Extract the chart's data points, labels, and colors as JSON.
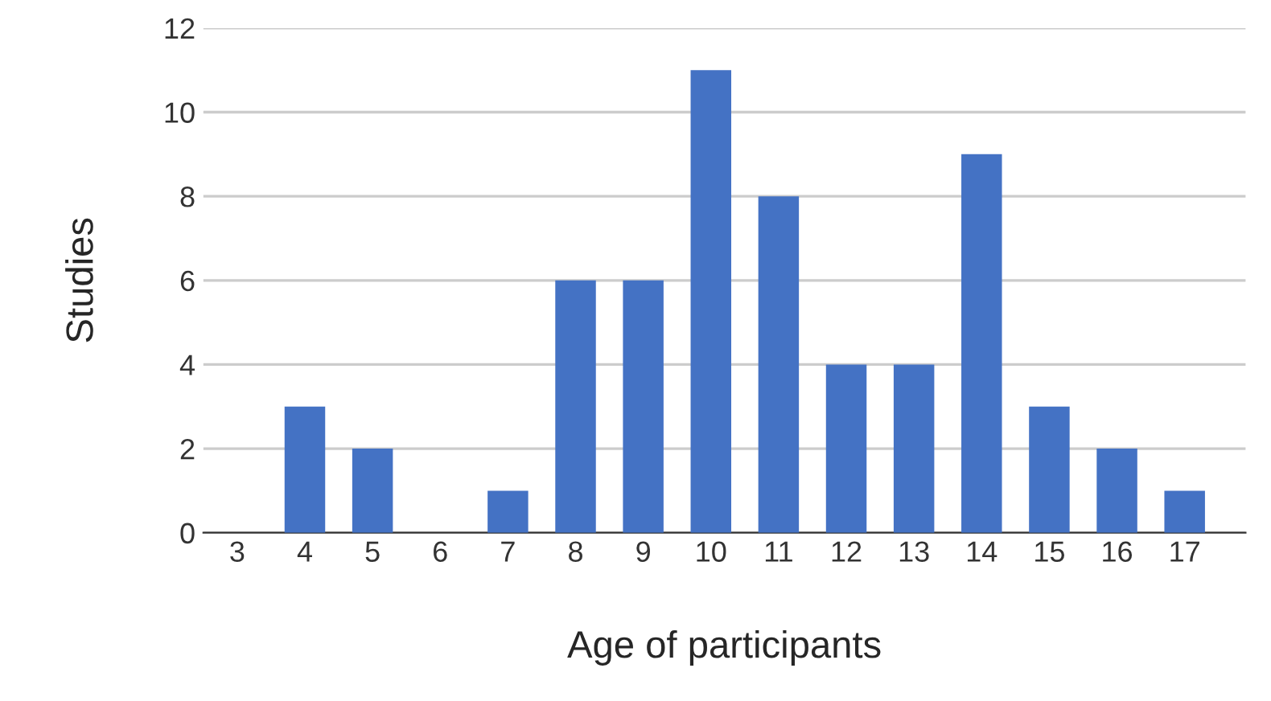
{
  "chart_data": {
    "type": "bar",
    "xlabel": "Age of participants",
    "ylabel": "Studies",
    "categories": [
      "3",
      "4",
      "5",
      "6",
      "7",
      "8",
      "9",
      "10",
      "11",
      "12",
      "13",
      "14",
      "15",
      "16",
      "17"
    ],
    "values": [
      0,
      3,
      2,
      0,
      1,
      6,
      6,
      11,
      8,
      4,
      4,
      9,
      3,
      2,
      1
    ],
    "color": "#4472c4",
    "ylim": [
      0,
      12
    ],
    "yticks": [
      0,
      2,
      4,
      6,
      8,
      10,
      12
    ],
    "grid": "y",
    "legend": false
  }
}
